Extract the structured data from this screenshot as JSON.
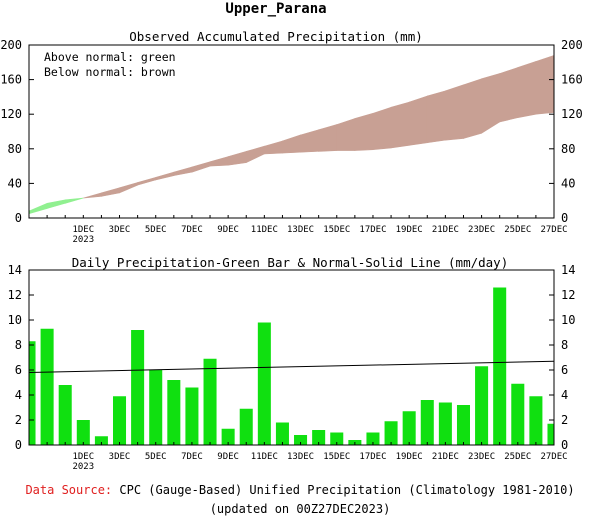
{
  "title": "Upper_Parana",
  "footer": {
    "source_label": "Data Source:",
    "source_text": "CPC (Gauge-Based) Unified Precipitation (Climatology 1981-2010)",
    "source_label_color": "#e02020",
    "updated": "(updated on 00Z27DEC2023)"
  },
  "chart_data": [
    {
      "type": "area",
      "title": "Observed Accumulated Precipitation (mm)",
      "legend": [
        "Above normal: green",
        "Below normal: brown"
      ],
      "colors": {
        "above": "#90f090",
        "below": "#c8a094"
      },
      "x_ticks": [
        "1DEC",
        "3DEC",
        "5DEC",
        "7DEC",
        "9DEC",
        "11DEC",
        "13DEC",
        "15DEC",
        "17DEC",
        "19DEC",
        "21DEC",
        "23DEC",
        "25DEC",
        "27DEC"
      ],
      "x_year_label": "2023",
      "ylim": [
        0,
        200
      ],
      "y_ticks": [
        0,
        40,
        80,
        120,
        160,
        200
      ],
      "x": [
        "28NOV",
        "29NOV",
        "30NOV",
        "1DEC",
        "2DEC",
        "3DEC",
        "4DEC",
        "5DEC",
        "6DEC",
        "7DEC",
        "8DEC",
        "9DEC",
        "10DEC",
        "11DEC",
        "12DEC",
        "13DEC",
        "14DEC",
        "15DEC",
        "16DEC",
        "17DEC",
        "18DEC",
        "19DEC",
        "20DEC",
        "21DEC",
        "22DEC",
        "23DEC",
        "24DEC",
        "25DEC",
        "26DEC",
        "27DEC"
      ],
      "series": [
        {
          "name": "Observed",
          "values": [
            8,
            17,
            21,
            23,
            25,
            29,
            38,
            44,
            49,
            53,
            60,
            61,
            64,
            74,
            75,
            76,
            77,
            78,
            78,
            79,
            81,
            84,
            87,
            90,
            92,
            98,
            111,
            116,
            120,
            122
          ]
        },
        {
          "name": "Normal",
          "values": [
            5,
            11,
            17,
            23,
            29,
            35,
            41,
            47,
            53,
            59,
            65,
            71,
            77,
            83,
            89,
            96,
            102,
            108,
            115,
            121,
            128,
            134,
            141,
            147,
            154,
            161,
            167,
            174,
            181,
            188
          ]
        }
      ]
    },
    {
      "type": "bar",
      "title": "Daily Precipitation-Green Bar & Normal-Solid Line (mm/day)",
      "colors": {
        "bar": "#10e010",
        "line": "#000000"
      },
      "x_ticks": [
        "1DEC",
        "3DEC",
        "5DEC",
        "7DEC",
        "9DEC",
        "11DEC",
        "13DEC",
        "15DEC",
        "17DEC",
        "19DEC",
        "21DEC",
        "23DEC",
        "25DEC",
        "27DEC"
      ],
      "x_year_label": "2023",
      "ylim": [
        0,
        14
      ],
      "y_ticks": [
        0,
        2,
        4,
        6,
        8,
        10,
        12,
        14
      ],
      "x": [
        "28NOV",
        "29NOV",
        "30NOV",
        "1DEC",
        "2DEC",
        "3DEC",
        "4DEC",
        "5DEC",
        "6DEC",
        "7DEC",
        "8DEC",
        "9DEC",
        "10DEC",
        "11DEC",
        "12DEC",
        "13DEC",
        "14DEC",
        "15DEC",
        "16DEC",
        "17DEC",
        "18DEC",
        "19DEC",
        "20DEC",
        "21DEC",
        "22DEC",
        "23DEC",
        "24DEC",
        "25DEC",
        "26DEC",
        "27DEC"
      ],
      "series": [
        {
          "name": "Daily",
          "values": [
            8.3,
            9.3,
            4.8,
            2.0,
            0.7,
            3.9,
            9.2,
            6.0,
            5.2,
            4.6,
            6.9,
            1.3,
            2.9,
            9.8,
            1.8,
            0.8,
            1.2,
            1.0,
            0.4,
            1.0,
            1.9,
            2.7,
            3.6,
            3.4,
            3.2,
            6.3,
            12.6,
            4.9,
            3.9,
            1.7
          ]
        },
        {
          "name": "Normal",
          "values_start_end": [
            5.8,
            6.7
          ]
        }
      ]
    }
  ]
}
